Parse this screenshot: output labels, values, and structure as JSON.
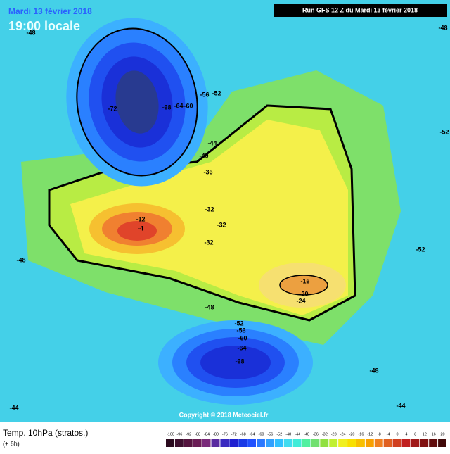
{
  "header": {
    "date": "Mardi 13 février 2018",
    "time": "19:00 locale",
    "run": "Run GFS 12 Z du Mardi 13 février 2018"
  },
  "contour_labels": [
    "-72",
    "-68",
    "-64",
    "-60",
    "-56",
    "-52",
    "-48",
    "-52",
    "-44",
    "-40",
    "-36",
    "-32",
    "-32",
    "-32",
    "-4",
    "-12",
    "-16",
    "-20",
    "-24",
    "-48",
    "-52",
    "-56",
    "-60",
    "-64",
    "-68",
    "-52",
    "-48",
    "-44",
    "-44",
    "-48",
    "-48"
  ],
  "copyright": "Copyright © 2018 Meteociel.fr",
  "footer": {
    "title": "Temp. 10hPa (stratos.)",
    "step": "(+ 6h)"
  },
  "legend": {
    "labels": [
      -100,
      -96,
      -92,
      -88,
      -84,
      -80,
      -76,
      -72,
      -68,
      -64,
      -60,
      -56,
      -52,
      -48,
      -44,
      -40,
      -36,
      -32,
      -28,
      -24,
      -20,
      -16,
      -12,
      -8,
      -4,
      0,
      4,
      8,
      12,
      16,
      20
    ],
    "colors": [
      "#2a0a1e",
      "#3d0f2e",
      "#55143f",
      "#6a1c55",
      "#7a2a7a",
      "#5a2aa0",
      "#3a2ac0",
      "#2020d0",
      "#1a3ae6",
      "#2050ff",
      "#2a78ff",
      "#30a0ff",
      "#30c0ff",
      "#40dcf0",
      "#40ecd8",
      "#50f0a0",
      "#70e070",
      "#90e040",
      "#c0f030",
      "#f0f020",
      "#f8e000",
      "#f8c000",
      "#f8a000",
      "#f08020",
      "#e06020",
      "#d04020",
      "#c02020",
      "#a01818",
      "#801010",
      "#600c0c",
      "#400808"
    ]
  }
}
